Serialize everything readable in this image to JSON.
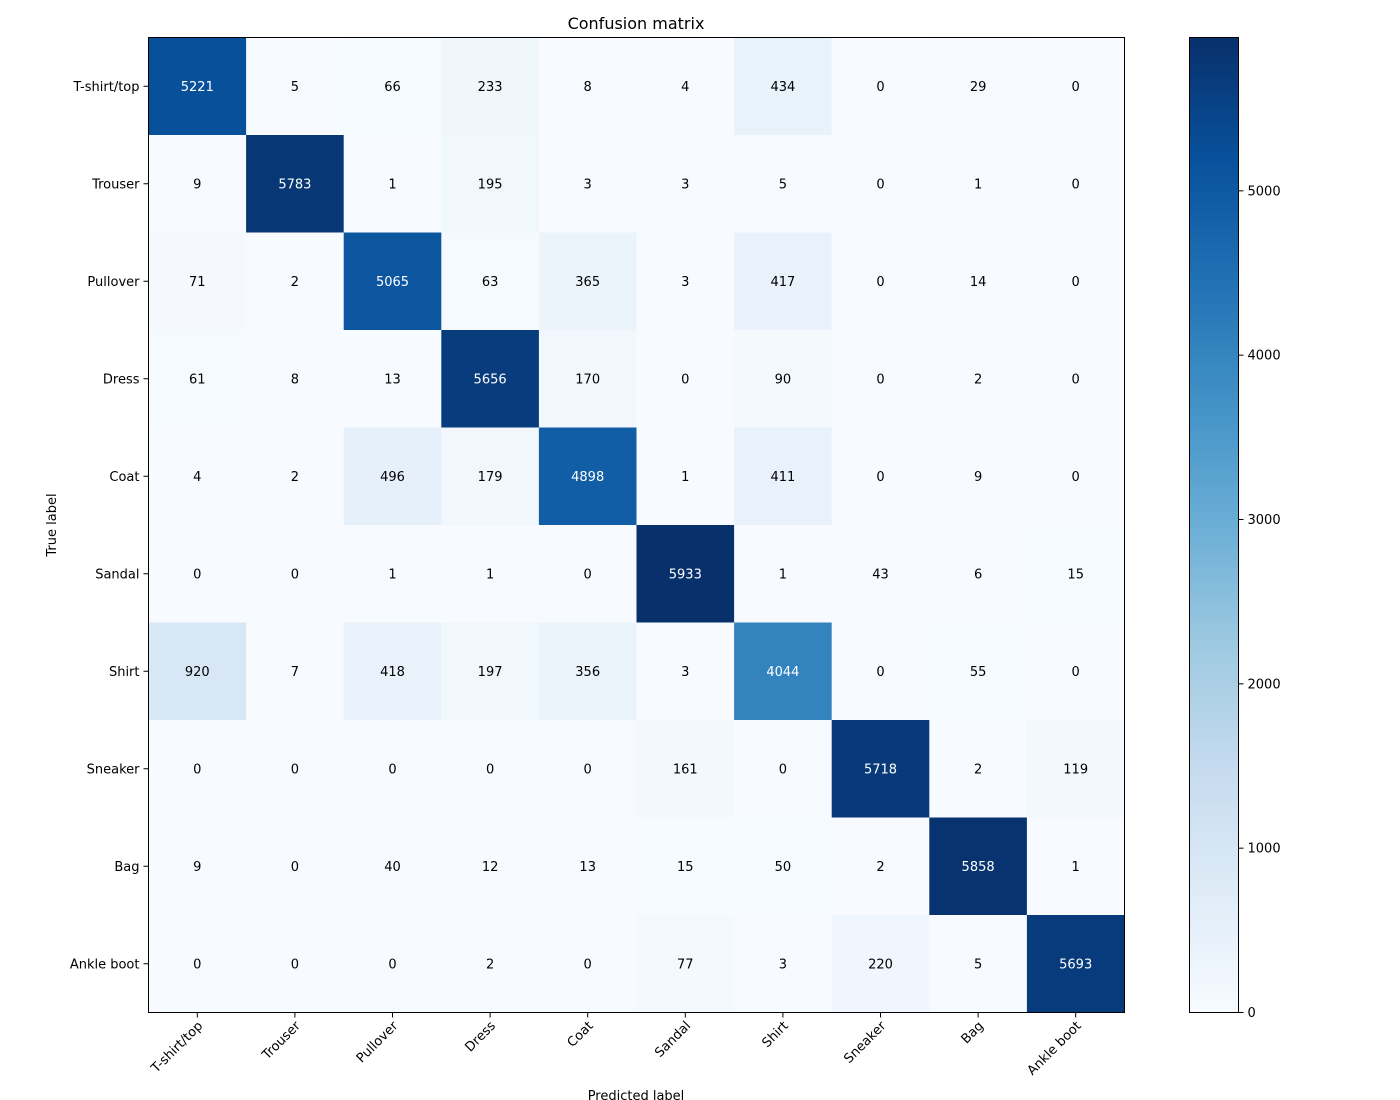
{
  "chart_data": {
    "type": "heatmap",
    "title": "Confusion matrix",
    "xlabel": "Predicted label",
    "ylabel": "True label",
    "x_categories": [
      "T-shirt/top",
      "Trouser",
      "Pullover",
      "Dress",
      "Coat",
      "Sandal",
      "Shirt",
      "Sneaker",
      "Bag",
      "Ankle boot"
    ],
    "y_categories": [
      "T-shirt/top",
      "Trouser",
      "Pullover",
      "Dress",
      "Coat",
      "Sandal",
      "Shirt",
      "Sneaker",
      "Bag",
      "Ankle boot"
    ],
    "values": [
      [
        5221,
        5,
        66,
        233,
        8,
        4,
        434,
        0,
        29,
        0
      ],
      [
        9,
        5783,
        1,
        195,
        3,
        3,
        5,
        0,
        1,
        0
      ],
      [
        71,
        2,
        5065,
        63,
        365,
        3,
        417,
        0,
        14,
        0
      ],
      [
        61,
        8,
        13,
        5656,
        170,
        0,
        90,
        0,
        2,
        0
      ],
      [
        4,
        2,
        496,
        179,
        4898,
        1,
        411,
        0,
        9,
        0
      ],
      [
        0,
        0,
        1,
        1,
        0,
        5933,
        1,
        43,
        6,
        15
      ],
      [
        920,
        7,
        418,
        197,
        356,
        3,
        4044,
        0,
        55,
        0
      ],
      [
        0,
        0,
        0,
        0,
        0,
        161,
        0,
        5718,
        2,
        119
      ],
      [
        9,
        0,
        40,
        12,
        13,
        15,
        50,
        2,
        5858,
        1
      ],
      [
        0,
        0,
        0,
        2,
        0,
        77,
        3,
        220,
        5,
        5693
      ]
    ],
    "colormap": "Blues",
    "color_range": [
      0,
      5933
    ],
    "colorbar_ticks": [
      0,
      1000,
      2000,
      3000,
      4000,
      5000
    ],
    "colorbar": "right"
  }
}
